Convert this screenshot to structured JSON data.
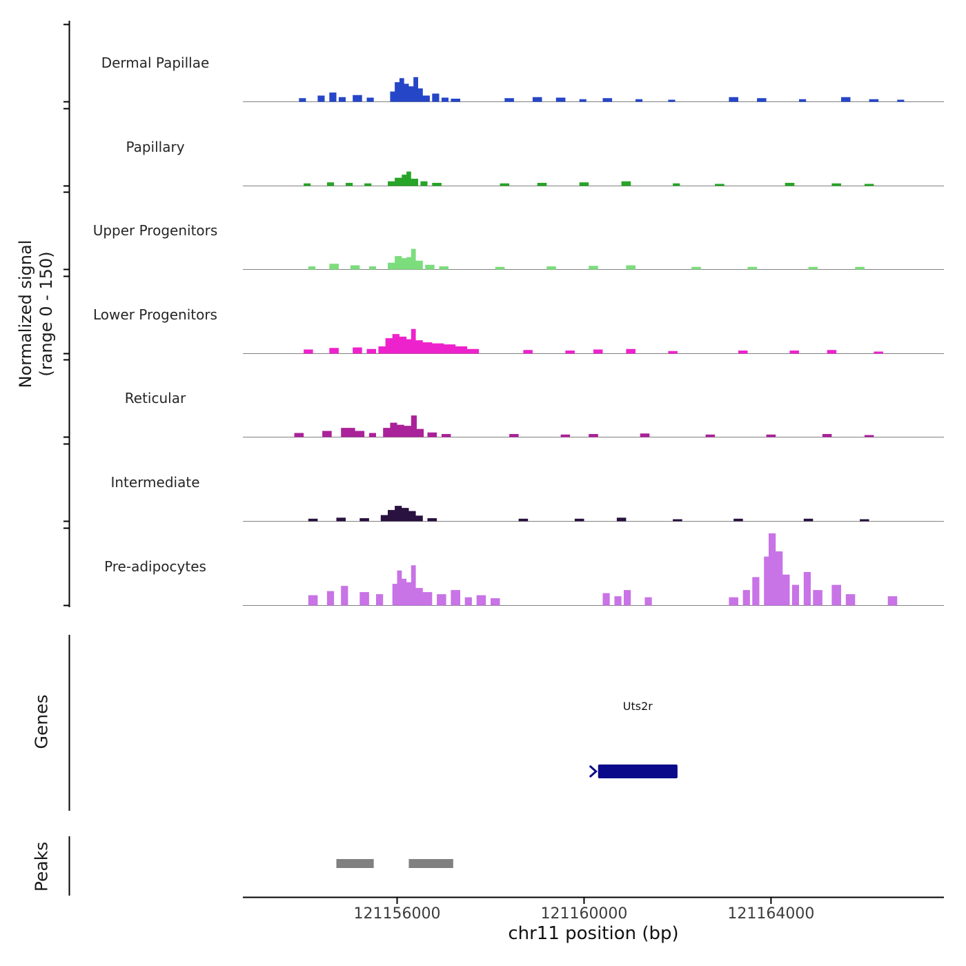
{
  "figure": {
    "background": "#ffffff"
  },
  "y_axis": {
    "label": "Normalized signal\n(range 0 - 150)"
  },
  "sections": {
    "genes_label": "Genes",
    "peaks_label": "Peaks"
  },
  "x_axis": {
    "title": "chr11 position (bp)",
    "chrom": "chr11",
    "min": 121152700,
    "max": 121167700,
    "ticks": [
      {
        "pos": 121156000,
        "label": "121156000"
      },
      {
        "pos": 121160000,
        "label": "121160000"
      },
      {
        "pos": 121164000,
        "label": "121164000"
      }
    ]
  },
  "chart_data": {
    "type": "area",
    "title": "",
    "xlabel": "chr11 position (bp)",
    "ylabel": "Normalized signal (range 0 - 150)",
    "x_range": [
      121152700,
      121167700
    ],
    "y_range_per_track": [
      0,
      150
    ],
    "baseline_color": "#808080",
    "tracks": [
      {
        "name": "Dermal Papillae",
        "color": "#2646c8",
        "intervals": [
          [
            121153900,
            121154050,
            7
          ],
          [
            121154300,
            121154450,
            12
          ],
          [
            121154550,
            121154700,
            18
          ],
          [
            121154750,
            121154900,
            9
          ],
          [
            121155050,
            121155250,
            13
          ],
          [
            121155350,
            121155500,
            8
          ],
          [
            121155850,
            121155950,
            20
          ],
          [
            121155950,
            121156050,
            38
          ],
          [
            121156050,
            121156150,
            46
          ],
          [
            121156150,
            121156250,
            35
          ],
          [
            121156250,
            121156350,
            30
          ],
          [
            121156350,
            121156450,
            48
          ],
          [
            121156450,
            121156550,
            26
          ],
          [
            121156550,
            121156700,
            12
          ],
          [
            121156750,
            121156900,
            16
          ],
          [
            121156950,
            121157100,
            8
          ],
          [
            121157150,
            121157350,
            6
          ],
          [
            121158300,
            121158500,
            7
          ],
          [
            121158900,
            121159100,
            9
          ],
          [
            121159400,
            121159600,
            8
          ],
          [
            121159900,
            121160050,
            5
          ],
          [
            121160400,
            121160600,
            7
          ],
          [
            121161100,
            121161250,
            5
          ],
          [
            121161800,
            121161950,
            4
          ],
          [
            121163100,
            121163300,
            9
          ],
          [
            121163700,
            121163900,
            7
          ],
          [
            121164600,
            121164750,
            5
          ],
          [
            121165500,
            121165700,
            9
          ],
          [
            121166100,
            121166300,
            5
          ],
          [
            121166700,
            121166850,
            4
          ]
        ]
      },
      {
        "name": "Papillary",
        "color": "#28a428",
        "intervals": [
          [
            121154000,
            121154150,
            5
          ],
          [
            121154500,
            121154650,
            7
          ],
          [
            121154900,
            121155050,
            6
          ],
          [
            121155300,
            121155450,
            5
          ],
          [
            121155800,
            121155950,
            9
          ],
          [
            121155950,
            121156100,
            16
          ],
          [
            121156100,
            121156200,
            22
          ],
          [
            121156200,
            121156300,
            28
          ],
          [
            121156300,
            121156450,
            14
          ],
          [
            121156500,
            121156650,
            9
          ],
          [
            121156750,
            121156950,
            6
          ],
          [
            121158200,
            121158400,
            5
          ],
          [
            121159000,
            121159200,
            6
          ],
          [
            121159900,
            121160100,
            7
          ],
          [
            121160800,
            121161000,
            9
          ],
          [
            121161900,
            121162050,
            5
          ],
          [
            121162800,
            121163000,
            4
          ],
          [
            121164300,
            121164500,
            6
          ],
          [
            121165300,
            121165500,
            5
          ],
          [
            121166000,
            121166200,
            4
          ]
        ]
      },
      {
        "name": "Upper Progenitors",
        "color": "#7cdd7c",
        "intervals": [
          [
            121154100,
            121154250,
            6
          ],
          [
            121154550,
            121154750,
            11
          ],
          [
            121155000,
            121155200,
            8
          ],
          [
            121155400,
            121155550,
            6
          ],
          [
            121155800,
            121155950,
            13
          ],
          [
            121155950,
            121156100,
            26
          ],
          [
            121156100,
            121156200,
            22
          ],
          [
            121156200,
            121156300,
            24
          ],
          [
            121156300,
            121156400,
            40
          ],
          [
            121156400,
            121156550,
            17
          ],
          [
            121156600,
            121156800,
            9
          ],
          [
            121156900,
            121157100,
            6
          ],
          [
            121158100,
            121158300,
            5
          ],
          [
            121159200,
            121159400,
            6
          ],
          [
            121160100,
            121160300,
            7
          ],
          [
            121160900,
            121161100,
            8
          ],
          [
            121162300,
            121162500,
            5
          ],
          [
            121163500,
            121163700,
            5
          ],
          [
            121164800,
            121165000,
            5
          ],
          [
            121165800,
            121166000,
            5
          ]
        ]
      },
      {
        "name": "Lower Progenitors",
        "color": "#ee22cc",
        "intervals": [
          [
            121154000,
            121154200,
            8
          ],
          [
            121154550,
            121154750,
            11
          ],
          [
            121155050,
            121155250,
            12
          ],
          [
            121155350,
            121155550,
            9
          ],
          [
            121155600,
            121155750,
            14
          ],
          [
            121155750,
            121155900,
            30
          ],
          [
            121155900,
            121156050,
            38
          ],
          [
            121156050,
            121156200,
            33
          ],
          [
            121156200,
            121156300,
            28
          ],
          [
            121156300,
            121156400,
            48
          ],
          [
            121156400,
            121156550,
            26
          ],
          [
            121156550,
            121156750,
            22
          ],
          [
            121156750,
            121157000,
            20
          ],
          [
            121157000,
            121157250,
            18
          ],
          [
            121157250,
            121157500,
            14
          ],
          [
            121157500,
            121157750,
            9
          ],
          [
            121158700,
            121158900,
            7
          ],
          [
            121159600,
            121159800,
            6
          ],
          [
            121160200,
            121160400,
            8
          ],
          [
            121160900,
            121161100,
            9
          ],
          [
            121161800,
            121162000,
            5
          ],
          [
            121163300,
            121163500,
            6
          ],
          [
            121164400,
            121164600,
            6
          ],
          [
            121165200,
            121165400,
            7
          ],
          [
            121166200,
            121166400,
            4
          ]
        ]
      },
      {
        "name": "Reticular",
        "color": "#aa2299",
        "intervals": [
          [
            121153800,
            121154000,
            8
          ],
          [
            121154400,
            121154600,
            12
          ],
          [
            121154800,
            121155100,
            18
          ],
          [
            121155100,
            121155300,
            12
          ],
          [
            121155400,
            121155550,
            8
          ],
          [
            121155700,
            121155850,
            18
          ],
          [
            121155850,
            121156000,
            28
          ],
          [
            121156000,
            121156150,
            24
          ],
          [
            121156150,
            121156300,
            22
          ],
          [
            121156300,
            121156420,
            42
          ],
          [
            121156420,
            121156570,
            16
          ],
          [
            121156650,
            121156850,
            9
          ],
          [
            121156950,
            121157150,
            6
          ],
          [
            121158400,
            121158600,
            6
          ],
          [
            121159500,
            121159700,
            5
          ],
          [
            121160100,
            121160300,
            6
          ],
          [
            121161200,
            121161400,
            7
          ],
          [
            121162600,
            121162800,
            5
          ],
          [
            121163900,
            121164100,
            5
          ],
          [
            121165100,
            121165300,
            6
          ],
          [
            121166000,
            121166200,
            4
          ]
        ]
      },
      {
        "name": "Intermediate",
        "color": "#29123f",
        "intervals": [
          [
            121154100,
            121154300,
            5
          ],
          [
            121154700,
            121154900,
            7
          ],
          [
            121155200,
            121155400,
            6
          ],
          [
            121155650,
            121155800,
            12
          ],
          [
            121155800,
            121155950,
            22
          ],
          [
            121155950,
            121156100,
            30
          ],
          [
            121156100,
            121156250,
            26
          ],
          [
            121156250,
            121156400,
            20
          ],
          [
            121156400,
            121156550,
            11
          ],
          [
            121156650,
            121156850,
            6
          ],
          [
            121158600,
            121158800,
            5
          ],
          [
            121159800,
            121160000,
            5
          ],
          [
            121160700,
            121160900,
            7
          ],
          [
            121161900,
            121162100,
            4
          ],
          [
            121163200,
            121163400,
            5
          ],
          [
            121164700,
            121164900,
            5
          ],
          [
            121165900,
            121166100,
            4
          ]
        ]
      },
      {
        "name": "Pre-adipocytes",
        "color": "#c873e6",
        "intervals": [
          [
            121154100,
            121154300,
            20
          ],
          [
            121154500,
            121154650,
            28
          ],
          [
            121154800,
            121154950,
            38
          ],
          [
            121155200,
            121155400,
            26
          ],
          [
            121155550,
            121155700,
            22
          ],
          [
            121155900,
            121156000,
            42
          ],
          [
            121156000,
            121156100,
            68
          ],
          [
            121156100,
            121156200,
            52
          ],
          [
            121156200,
            121156300,
            45
          ],
          [
            121156300,
            121156400,
            78
          ],
          [
            121156400,
            121156550,
            34
          ],
          [
            121156550,
            121156750,
            26
          ],
          [
            121156850,
            121157050,
            22
          ],
          [
            121157150,
            121157350,
            30
          ],
          [
            121157450,
            121157600,
            16
          ],
          [
            121157700,
            121157900,
            20
          ],
          [
            121158000,
            121158200,
            14
          ],
          [
            121160400,
            121160550,
            24
          ],
          [
            121160650,
            121160800,
            18
          ],
          [
            121160850,
            121161000,
            30
          ],
          [
            121161300,
            121161450,
            16
          ],
          [
            121163100,
            121163300,
            16
          ],
          [
            121163400,
            121163550,
            30
          ],
          [
            121163600,
            121163750,
            55
          ],
          [
            121163850,
            121163950,
            95
          ],
          [
            121163950,
            121164100,
            140
          ],
          [
            121164100,
            121164250,
            105
          ],
          [
            121164250,
            121164400,
            60
          ],
          [
            121164450,
            121164600,
            40
          ],
          [
            121164700,
            121164850,
            65
          ],
          [
            121164900,
            121165100,
            30
          ],
          [
            121165300,
            121165500,
            40
          ],
          [
            121165600,
            121165800,
            22
          ],
          [
            121166500,
            121166700,
            18
          ]
        ]
      }
    ],
    "genes": [
      {
        "name": "Uts2r",
        "start": 121160300,
        "end": 121162000,
        "strand": "+",
        "color": "#0a0a8a"
      }
    ],
    "peaks": [
      {
        "start": 121154700,
        "end": 121155500
      },
      {
        "start": 121156250,
        "end": 121157200
      }
    ],
    "peak_color": "#808080"
  }
}
